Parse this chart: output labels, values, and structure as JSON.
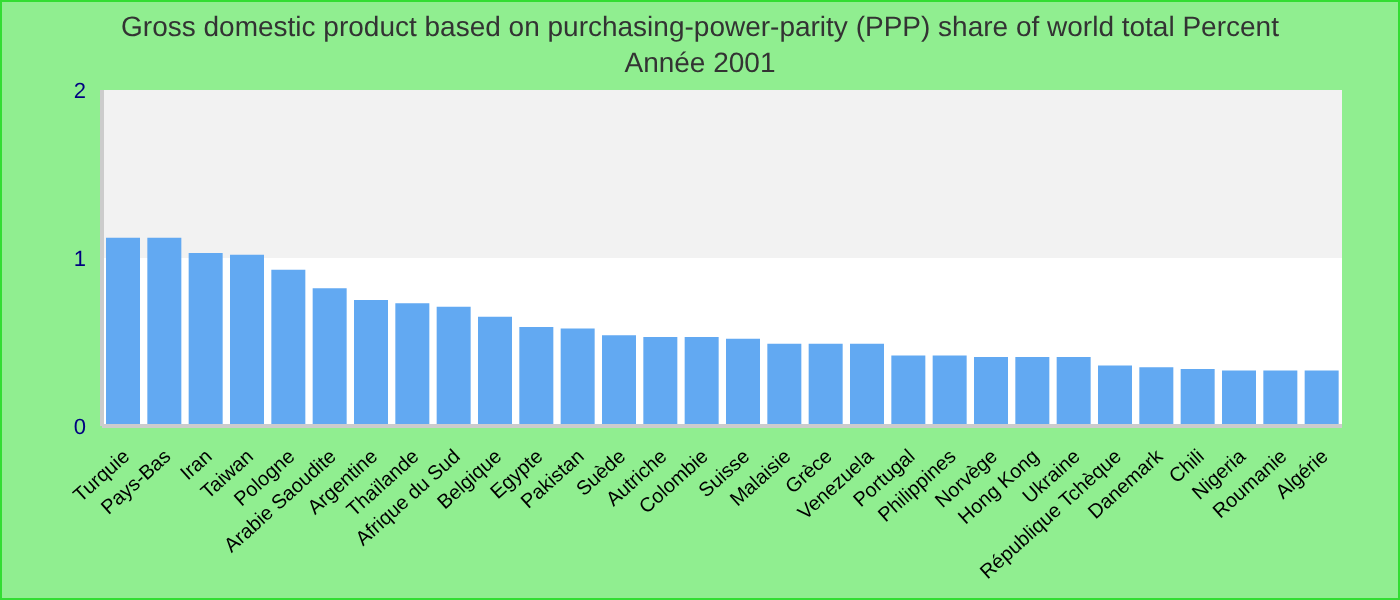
{
  "chart_data": {
    "type": "bar",
    "title": "Gross domestic product based on purchasing-power-parity (PPP) share of world total  Percent",
    "subtitle": "Année 2001",
    "categories": [
      "Turquie",
      "Pays-Bas",
      "Iran",
      "Taiwan",
      "Pologne",
      "Arabie Saoudite",
      "Argentine",
      "Thaïlande",
      "Afrique du Sud",
      "Belgique",
      "Egypte",
      "Pakistan",
      "Suède",
      "Autriche",
      "Colombie",
      "Suisse",
      "Malaisie",
      "Grèce",
      "Venezuela",
      "Portugal",
      "Philippines",
      "Norvège",
      "Hong Kong",
      "Ukraine",
      "République Tchèque",
      "Danemark",
      "Chili",
      "Nigeria",
      "Roumanie",
      "Algérie"
    ],
    "values": [
      1.12,
      1.12,
      1.03,
      1.02,
      0.93,
      0.82,
      0.75,
      0.73,
      0.71,
      0.65,
      0.59,
      0.58,
      0.54,
      0.53,
      0.53,
      0.52,
      0.49,
      0.49,
      0.49,
      0.42,
      0.42,
      0.41,
      0.41,
      0.41,
      0.36,
      0.35,
      0.34,
      0.33,
      0.33,
      0.33
    ],
    "color": "#62a9f2",
    "ylim": [
      0,
      2
    ],
    "yticks": [
      0,
      1,
      2
    ],
    "grid": false,
    "legend": false,
    "bands": [
      {
        "axis": "y",
        "from": 1,
        "to": 2,
        "color": "#f2f2f2"
      }
    ]
  }
}
